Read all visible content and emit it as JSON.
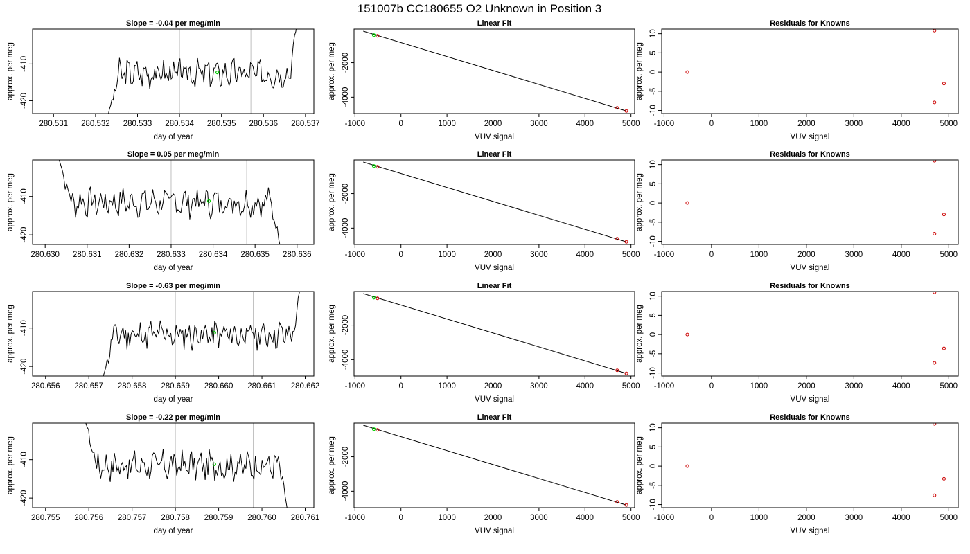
{
  "page_title": "151007b     CC180655   O2 Unknown in Position  3",
  "colors": {
    "trace": "#000000",
    "marker": "#00cc00",
    "residual": "#cc0000",
    "vline": "#bfbfbf"
  },
  "chart_data": [
    {
      "type": "line",
      "title": "Slope =  -0.04  per meg/min",
      "xlabel": "day of year",
      "ylabel": "approx. per meg",
      "xlim": [
        280.5305,
        280.5372
      ],
      "ylim": [
        -423.5,
        -400.5
      ],
      "xticks": [
        280.531,
        280.532,
        280.533,
        280.534,
        280.535,
        280.536,
        280.537
      ],
      "xtick_labels": [
        "280.531",
        "280.532",
        "280.533",
        "280.534",
        "280.535",
        "280.536",
        "280.537"
      ],
      "yticks": [
        -420,
        -410
      ],
      "ytick_labels": [
        "-420",
        "-410"
      ],
      "vlines": [
        280.534,
        280.5357
      ],
      "trace": {
        "x_start": 280.5323,
        "x_end": 280.5368,
        "y_start": -424,
        "y_end": -399,
        "base": -412.5,
        "seed": 3
      },
      "marker": {
        "x": 280.5349,
        "y": -412.3
      }
    },
    {
      "type": "line",
      "title": "Linear Fit",
      "xlabel": "VUV signal",
      "ylabel": "approx. per meg",
      "xlim": [
        -1020,
        5080
      ],
      "ylim": [
        -4950,
        -50
      ],
      "xticks": [
        -1000,
        0,
        1000,
        2000,
        3000,
        4000,
        5000
      ],
      "xtick_labels": [
        "-1000",
        "0",
        "1000",
        "2000",
        "3000",
        "4000",
        "5000"
      ],
      "yticks": [
        -4000,
        -2000
      ],
      "ytick_labels": [
        "-4000",
        "-2000"
      ],
      "fit_line": [
        [
          -820,
          -170
        ],
        [
          4900,
          -4800
        ]
      ],
      "points": [
        [
          -510,
          -440
        ],
        [
          4700,
          -4620
        ],
        [
          4900,
          -4800
        ]
      ],
      "marker": {
        "x": -590,
        "y": -400
      }
    },
    {
      "type": "scatter",
      "title": "Residuals for Knowns",
      "xlabel": "VUV signal",
      "ylabel": "approx. per meg",
      "xlim": [
        -1050,
        5200
      ],
      "ylim": [
        -10.8,
        11.2
      ],
      "xticks": [
        -1000,
        0,
        1000,
        2000,
        3000,
        4000,
        5000
      ],
      "xtick_labels": [
        "-1000",
        "0",
        "1000",
        "2000",
        "3000",
        "4000",
        "5000"
      ],
      "yticks": [
        -10,
        -5,
        0,
        5,
        10
      ],
      "ytick_labels": [
        "-10",
        "-5",
        "0",
        "5",
        "10"
      ],
      "points": [
        [
          -510,
          0
        ],
        [
          4700,
          10.8
        ],
        [
          4700,
          -7.9
        ],
        [
          4900,
          -3
        ]
      ]
    },
    {
      "type": "line",
      "title": "Slope =  0.05  per meg/min",
      "xlabel": "day of year",
      "ylabel": "approx. per meg",
      "xlim": [
        280.6297,
        280.6364
      ],
      "ylim": [
        -422.5,
        -400.5
      ],
      "xticks": [
        280.63,
        280.631,
        280.632,
        280.633,
        280.634,
        280.635,
        280.636
      ],
      "xtick_labels": [
        "280.630",
        "280.631",
        "280.632",
        "280.633",
        "280.634",
        "280.635",
        "280.636"
      ],
      "yticks": [
        -420,
        -410
      ],
      "ytick_labels": [
        "-420",
        "-410"
      ],
      "vlines": [
        280.633,
        280.6348
      ],
      "trace": {
        "x_start": 280.6303,
        "x_end": 280.6356,
        "y_start": -399,
        "y_end": -423,
        "base": -411.5,
        "seed": 7
      },
      "marker": {
        "x": 280.6339,
        "y": -411.2
      }
    },
    {
      "type": "line",
      "title": "Linear Fit",
      "xlabel": "VUV signal",
      "ylabel": "approx. per meg",
      "xlim": [
        -1020,
        5080
      ],
      "ylim": [
        -4950,
        -50
      ],
      "xticks": [
        -1000,
        0,
        1000,
        2000,
        3000,
        4000,
        5000
      ],
      "xtick_labels": [
        "-1000",
        "0",
        "1000",
        "2000",
        "3000",
        "4000",
        "5000"
      ],
      "yticks": [
        -4000,
        -2000
      ],
      "ytick_labels": [
        "-4000",
        "-2000"
      ],
      "fit_line": [
        [
          -820,
          -170
        ],
        [
          4900,
          -4800
        ]
      ],
      "points": [
        [
          -510,
          -440
        ],
        [
          4700,
          -4620
        ],
        [
          4900,
          -4800
        ]
      ],
      "marker": {
        "x": -590,
        "y": -400
      }
    },
    {
      "type": "scatter",
      "title": "Residuals for Knowns",
      "xlabel": "VUV signal",
      "ylabel": "approx. per meg",
      "xlim": [
        -1050,
        5200
      ],
      "ylim": [
        -10.8,
        11.2
      ],
      "xticks": [
        -1000,
        0,
        1000,
        2000,
        3000,
        4000,
        5000
      ],
      "xtick_labels": [
        "-1000",
        "0",
        "1000",
        "2000",
        "3000",
        "4000",
        "5000"
      ],
      "yticks": [
        -10,
        -5,
        0,
        5,
        10
      ],
      "ytick_labels": [
        "-10",
        "-5",
        "0",
        "5",
        "10"
      ],
      "points": [
        [
          -510,
          0
        ],
        [
          4700,
          11
        ],
        [
          4700,
          -8
        ],
        [
          4900,
          -3
        ]
      ]
    },
    {
      "type": "line",
      "title": "Slope =  -0.63  per meg/min",
      "xlabel": "day of year",
      "ylabel": "approx. per meg",
      "xlim": [
        280.6557,
        280.6622
      ],
      "ylim": [
        -422.5,
        -400.5
      ],
      "xticks": [
        280.656,
        280.657,
        280.658,
        280.659,
        280.66,
        280.661,
        280.662
      ],
      "xtick_labels": [
        "280.656",
        "280.657",
        "280.658",
        "280.659",
        "280.660",
        "280.661",
        "280.662"
      ],
      "yticks": [
        -420,
        -410
      ],
      "ytick_labels": [
        "-420",
        "-410"
      ],
      "vlines": [
        280.659,
        280.6608
      ],
      "trace": {
        "x_start": 280.6573,
        "x_end": 280.6619,
        "y_start": -424,
        "y_end": -399,
        "base": -411.8,
        "seed": 11
      },
      "marker": {
        "x": 280.6599,
        "y": -411.2
      }
    },
    {
      "type": "line",
      "title": "Linear Fit",
      "xlabel": "VUV signal",
      "ylabel": "approx. per meg",
      "xlim": [
        -1020,
        5080
      ],
      "ylim": [
        -4950,
        -50
      ],
      "xticks": [
        -1000,
        0,
        1000,
        2000,
        3000,
        4000,
        5000
      ],
      "xtick_labels": [
        "-1000",
        "0",
        "1000",
        "2000",
        "3000",
        "4000",
        "5000"
      ],
      "yticks": [
        -4000,
        -2000
      ],
      "ytick_labels": [
        "-4000",
        "-2000"
      ],
      "fit_line": [
        [
          -820,
          -170
        ],
        [
          4900,
          -4800
        ]
      ],
      "points": [
        [
          -510,
          -440
        ],
        [
          4700,
          -4620
        ],
        [
          4900,
          -4800
        ]
      ],
      "marker": {
        "x": -590,
        "y": -400
      }
    },
    {
      "type": "scatter",
      "title": "Residuals for Knowns",
      "xlabel": "VUV signal",
      "ylabel": "approx. per meg",
      "xlim": [
        -1050,
        5200
      ],
      "ylim": [
        -10.8,
        11.2
      ],
      "xticks": [
        -1000,
        0,
        1000,
        2000,
        3000,
        4000,
        5000
      ],
      "xtick_labels": [
        "-1000",
        "0",
        "1000",
        "2000",
        "3000",
        "4000",
        "5000"
      ],
      "yticks": [
        -10,
        -5,
        0,
        5,
        10
      ],
      "ytick_labels": [
        "-10",
        "-5",
        "0",
        "5",
        "10"
      ],
      "points": [
        [
          -510,
          0
        ],
        [
          4700,
          11
        ],
        [
          4700,
          -7.4
        ],
        [
          4900,
          -3.6
        ]
      ]
    },
    {
      "type": "line",
      "title": "Slope =  -0.22  per meg/min",
      "xlabel": "day of year",
      "ylabel": "approx. per meg",
      "xlim": [
        280.7547,
        280.7612
      ],
      "ylim": [
        -422.5,
        -400.5
      ],
      "xticks": [
        280.755,
        280.756,
        280.757,
        280.758,
        280.759,
        280.76,
        280.761
      ],
      "xtick_labels": [
        "280.755",
        "280.756",
        "280.757",
        "280.758",
        "280.759",
        "280.760",
        "280.761"
      ],
      "yticks": [
        -420,
        -410
      ],
      "ytick_labels": [
        "-420",
        "-410"
      ],
      "vlines": [
        280.758,
        280.7598
      ],
      "trace": {
        "x_start": 280.7559,
        "x_end": 280.7606,
        "y_start": -399,
        "y_end": -424,
        "base": -411.5,
        "seed": 17
      },
      "marker": {
        "x": 280.7589,
        "y": -411.2
      }
    },
    {
      "type": "line",
      "title": "Linear Fit",
      "xlabel": "VUV signal",
      "ylabel": "approx. per meg",
      "xlim": [
        -1020,
        5080
      ],
      "ylim": [
        -4950,
        -50
      ],
      "xticks": [
        -1000,
        0,
        1000,
        2000,
        3000,
        4000,
        5000
      ],
      "xtick_labels": [
        "-1000",
        "0",
        "1000",
        "2000",
        "3000",
        "4000",
        "5000"
      ],
      "yticks": [
        -4000,
        -2000
      ],
      "ytick_labels": [
        "-4000",
        "-2000"
      ],
      "fit_line": [
        [
          -820,
          -170
        ],
        [
          4900,
          -4800
        ]
      ],
      "points": [
        [
          -510,
          -440
        ],
        [
          4700,
          -4620
        ],
        [
          4900,
          -4800
        ]
      ],
      "marker": {
        "x": -590,
        "y": -400
      }
    },
    {
      "type": "scatter",
      "title": "Residuals for Knowns",
      "xlabel": "VUV signal",
      "ylabel": "approx. per meg",
      "xlim": [
        -1050,
        5200
      ],
      "ylim": [
        -10.8,
        11.2
      ],
      "xticks": [
        -1000,
        0,
        1000,
        2000,
        3000,
        4000,
        5000
      ],
      "xtick_labels": [
        "-1000",
        "0",
        "1000",
        "2000",
        "3000",
        "4000",
        "5000"
      ],
      "yticks": [
        -10,
        -5,
        0,
        5,
        10
      ],
      "ytick_labels": [
        "-10",
        "-5",
        "0",
        "5",
        "10"
      ],
      "points": [
        [
          -510,
          0
        ],
        [
          4700,
          11
        ],
        [
          4700,
          -7.6
        ],
        [
          4900,
          -3.3
        ]
      ]
    }
  ]
}
